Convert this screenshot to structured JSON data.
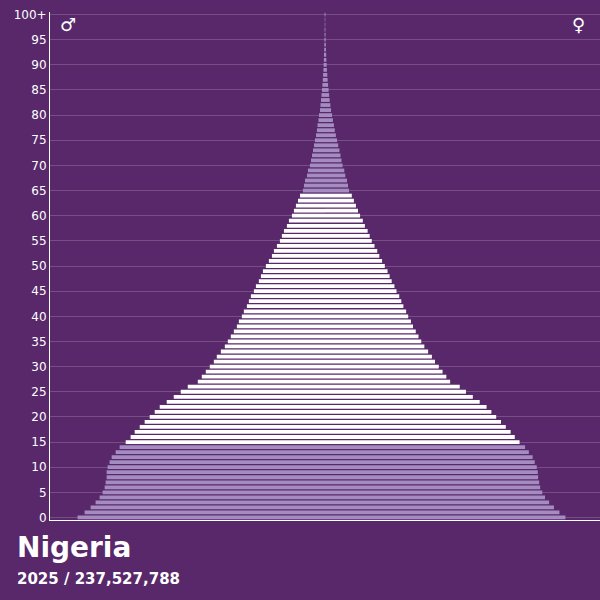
{
  "chart_data": {
    "type": "bar",
    "orientation": "horizontal",
    "title": "Nigeria",
    "subtitle": "2025 / 237,527,788",
    "grid": true,
    "tick_labels": "y",
    "xlim": [
      0,
      4000000
    ],
    "categories": [
      "0",
      null,
      null,
      null,
      null,
      "5",
      null,
      null,
      null,
      null,
      "10",
      null,
      null,
      null,
      null,
      "15",
      null,
      null,
      null,
      null,
      "20",
      null,
      null,
      null,
      null,
      "25",
      null,
      null,
      null,
      null,
      "30",
      null,
      null,
      null,
      null,
      "35",
      null,
      null,
      null,
      null,
      "40",
      null,
      null,
      null,
      null,
      "45",
      null,
      null,
      null,
      null,
      "50",
      null,
      null,
      null,
      null,
      "55",
      null,
      null,
      null,
      null,
      "60",
      null,
      null,
      null,
      null,
      "65",
      null,
      null,
      null,
      null,
      "70",
      null,
      null,
      null,
      null,
      "75",
      null,
      null,
      null,
      null,
      "80",
      null,
      null,
      null,
      null,
      "85",
      null,
      null,
      null,
      null,
      "90",
      null,
      null,
      null,
      null,
      "95",
      null,
      null,
      null,
      null,
      "100+"
    ],
    "series": [
      {
        "name": "♂",
        "colors": [
          "#a58cc0",
          "#a58cc0",
          "#a58cc0",
          "#a58cc0",
          "#a58cc0",
          "#a58cc0",
          "#a58cc0",
          "#a58cc0",
          "#a58cc0",
          "#a58cc0",
          "#a58cc0",
          "#a58cc0",
          "#a58cc0",
          "#a58cc0",
          "#a58cc0",
          "#ffffff",
          "#ffffff",
          "#ffffff",
          "#ffffff",
          "#ffffff",
          "#ffffff",
          "#ffffff",
          "#ffffff",
          "#ffffff",
          "#ffffff",
          "#ffffff",
          "#ffffff",
          "#ffffff",
          "#ffffff",
          "#ffffff",
          "#ffffff",
          "#ffffff",
          "#ffffff",
          "#ffffff",
          "#ffffff",
          "#ffffff",
          "#ffffff",
          "#ffffff",
          "#ffffff",
          "#ffffff",
          "#ffffff",
          "#ffffff",
          "#ffffff",
          "#ffffff",
          "#ffffff",
          "#ffffff",
          "#ffffff",
          "#ffffff",
          "#ffffff",
          "#ffffff",
          "#ffffff",
          "#ffffff",
          "#ffffff",
          "#ffffff",
          "#ffffff",
          "#ffffff",
          "#ffffff",
          "#ffffff",
          "#ffffff",
          "#ffffff",
          "#ffffff",
          "#ffffff",
          "#ffffff",
          "#ffffff",
          "#ffffff",
          "#a58cc0",
          "#a58cc0",
          "#a58cc0",
          "#a58cc0",
          "#a58cc0",
          "#a58cc0",
          "#a58cc0",
          "#a58cc0",
          "#a58cc0",
          "#a58cc0",
          "#a58cc0",
          "#a58cc0",
          "#a58cc0",
          "#a58cc0",
          "#a58cc0",
          "#a58cc0",
          "#a58cc0",
          "#a58cc0",
          "#a58cc0",
          "#a58cc0",
          "#a58cc0",
          "#a58cc0",
          "#a58cc0",
          "#a58cc0",
          "#a58cc0",
          "#a58cc0",
          "#a58cc0",
          "#a58cc0",
          "#a58cc0",
          "#a58cc0",
          "#a58cc0",
          "#a58cc0",
          "#a58cc0",
          "#a58cc0",
          "#a58cc0",
          "#a58cc0"
        ],
        "values": [
          3599000,
          3497000,
          3409000,
          3337000,
          3278000,
          3235000,
          3205000,
          3191000,
          3176000,
          3176000,
          3162000,
          3133000,
          3103000,
          3045000,
          2987000,
          2899000,
          2827000,
          2768000,
          2695000,
          2623000,
          2550000,
          2477000,
          2404000,
          2302000,
          2200000,
          2098000,
          1996000,
          1850000,
          1792000,
          1734000,
          1676000,
          1617000,
          1574000,
          1515000,
          1457000,
          1413000,
          1370000,
          1326000,
          1282000,
          1253000,
          1209000,
          1180000,
          1136000,
          1107000,
          1078000,
          1034000,
          1005000,
          962000,
          932000,
          903000,
          860000,
          816000,
          772000,
          743000,
          699000,
          656000,
          627000,
          597000,
          554000,
          525000,
          481000,
          452000,
          423000,
          393000,
          364000,
          321000,
          306000,
          291000,
          262000,
          248000,
          219000,
          204000,
          189000,
          175000,
          160000,
          146000,
          131000,
          117000,
          109000,
          95000,
          87000,
          73000,
          66000,
          58000,
          51000,
          44000,
          38000,
          32000,
          28000,
          23000,
          20000,
          17000,
          15000,
          12000,
          10000,
          9000,
          7000,
          6000,
          4000,
          4000,
          6000
        ]
      },
      {
        "name": "♀",
        "colors": [
          "#a58cc0",
          "#a58cc0",
          "#a58cc0",
          "#a58cc0",
          "#a58cc0",
          "#a58cc0",
          "#a58cc0",
          "#a58cc0",
          "#a58cc0",
          "#a58cc0",
          "#a58cc0",
          "#a58cc0",
          "#a58cc0",
          "#a58cc0",
          "#a58cc0",
          "#ffffff",
          "#ffffff",
          "#ffffff",
          "#ffffff",
          "#ffffff",
          "#ffffff",
          "#ffffff",
          "#ffffff",
          "#ffffff",
          "#ffffff",
          "#ffffff",
          "#ffffff",
          "#ffffff",
          "#ffffff",
          "#ffffff",
          "#ffffff",
          "#ffffff",
          "#ffffff",
          "#ffffff",
          "#ffffff",
          "#ffffff",
          "#ffffff",
          "#ffffff",
          "#ffffff",
          "#ffffff",
          "#ffffff",
          "#ffffff",
          "#ffffff",
          "#ffffff",
          "#ffffff",
          "#ffffff",
          "#ffffff",
          "#ffffff",
          "#ffffff",
          "#ffffff",
          "#ffffff",
          "#ffffff",
          "#ffffff",
          "#ffffff",
          "#ffffff",
          "#ffffff",
          "#ffffff",
          "#ffffff",
          "#ffffff",
          "#ffffff",
          "#ffffff",
          "#ffffff",
          "#ffffff",
          "#ffffff",
          "#ffffff",
          "#a58cc0",
          "#a58cc0",
          "#a58cc0",
          "#a58cc0",
          "#a58cc0",
          "#a58cc0",
          "#a58cc0",
          "#a58cc0",
          "#a58cc0",
          "#a58cc0",
          "#a58cc0",
          "#a58cc0",
          "#a58cc0",
          "#a58cc0",
          "#a58cc0",
          "#a58cc0",
          "#a58cc0",
          "#a58cc0",
          "#a58cc0",
          "#a58cc0",
          "#a58cc0",
          "#a58cc0",
          "#a58cc0",
          "#a58cc0",
          "#a58cc0",
          "#a58cc0",
          "#a58cc0",
          "#a58cc0",
          "#a58cc0",
          "#a58cc0",
          "#a58cc0",
          "#a58cc0",
          "#a58cc0",
          "#a58cc0",
          "#a58cc0",
          "#a58cc0"
        ],
        "values": [
          3497000,
          3410000,
          3330000,
          3260000,
          3200000,
          3160000,
          3130000,
          3115000,
          3100000,
          3095000,
          3080000,
          3050000,
          3020000,
          2965000,
          2910000,
          2830000,
          2760000,
          2700000,
          2630000,
          2560000,
          2490000,
          2420000,
          2350000,
          2250000,
          2150000,
          2050000,
          1960000,
          1820000,
          1765000,
          1710000,
          1655000,
          1600000,
          1555000,
          1500000,
          1445000,
          1400000,
          1360000,
          1320000,
          1280000,
          1250000,
          1210000,
          1180000,
          1140000,
          1110000,
          1080000,
          1040000,
          1010000,
          970000,
          940000,
          910000,
          870000,
          830000,
          790000,
          760000,
          720000,
          680000,
          650000,
          620000,
          580000,
          550000,
          510000,
          480000,
          450000,
          420000,
          390000,
          350000,
          335000,
          320000,
          295000,
          280000,
          255000,
          240000,
          225000,
          210000,
          192000,
          175000,
          158000,
          142000,
          130000,
          115000,
          102000,
          88000,
          78000,
          68000,
          60000,
          52000,
          45000,
          38000,
          33000,
          28000,
          24000,
          20000,
          17000,
          14000,
          12000,
          10000,
          8000,
          6000,
          5000,
          4000,
          7000
        ]
      }
    ]
  }
}
